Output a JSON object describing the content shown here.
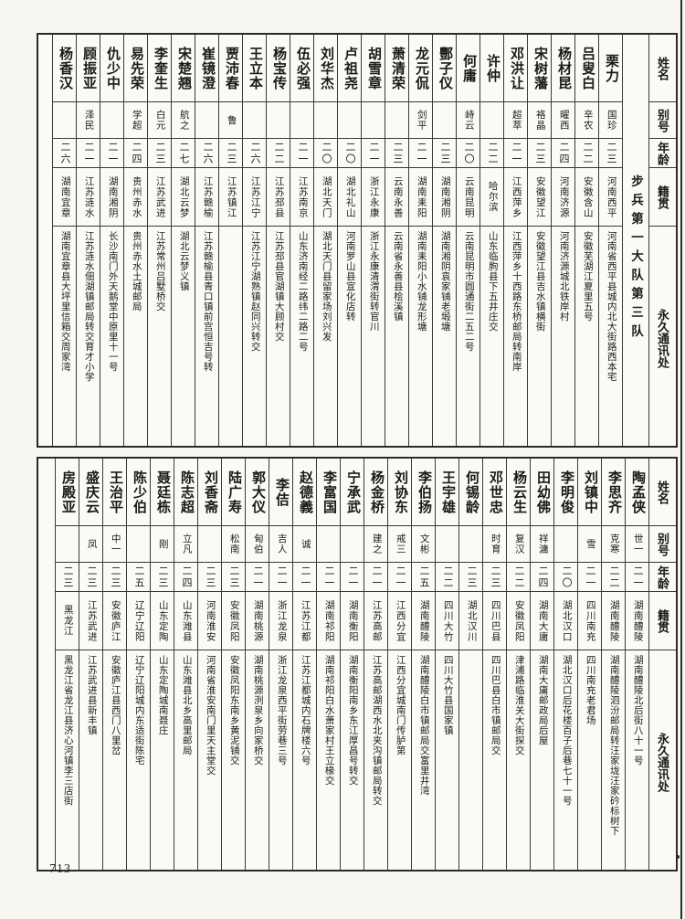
{
  "page": {
    "number": "713"
  },
  "headers": {
    "name": "姓名",
    "alias": "别号",
    "age": "年龄",
    "native": "籍贯",
    "address": "永久通讯处"
  },
  "tables": [
    {
      "unit": "步兵第一大队第三队",
      "people": [
        {
          "name": "栗力",
          "alias": "国珍",
          "age": "二三",
          "native": "河南西平",
          "address": "河南省西平县城内北大街路西本宅"
        },
        {
          "name": "吕叟白",
          "alias": "辛农",
          "age": "二二",
          "native": "安徽含山",
          "address": "安徽芜湖江夏里五号"
        },
        {
          "name": "杨材昆",
          "alias": "曜西",
          "age": "二四",
          "native": "河南济源",
          "address": "河南济源城北铁岸村"
        },
        {
          "name": "宋树藩",
          "alias": "袼晶",
          "age": "二三",
          "native": "安徽望江",
          "address": "安徽望江县吉水镇横街"
        },
        {
          "name": "邓洪让",
          "alias": "超萃",
          "age": "二一",
          "native": "江西萍乡",
          "address": "江西萍乡十西路东桥邮局转南岸"
        },
        {
          "name": "许仲",
          "alias": "",
          "age": "二二",
          "native": "哈尔滨",
          "address": "山东临朐县下五井庄交"
        },
        {
          "name": "何庸",
          "alias": "峙云",
          "age": "二〇",
          "native": "云南昆明",
          "address": "云南昆明市圆通街二五二号"
        },
        {
          "name": "酆子仪",
          "alias": "",
          "age": "二三",
          "native": "湖南湘阴",
          "address": "湖南湘阴袁家铺老塅塘"
        },
        {
          "name": "龙元侃",
          "alias": "剑平",
          "age": "二一",
          "native": "湖南耒阳",
          "address": "湖南耒阳小水铺龙形塘"
        },
        {
          "name": "萧清荣",
          "alias": "",
          "age": "二三",
          "native": "云南永善",
          "address": "云南省永善县桧溪镇"
        },
        {
          "name": "胡雪章",
          "alias": "",
          "age": "二一",
          "native": "浙江永康",
          "address": "浙江永康清渭街转官川"
        },
        {
          "name": "卢祖尧",
          "alias": "",
          "age": "二〇",
          "native": "湖北礼山",
          "address": "河南罗山县宣化店转"
        },
        {
          "name": "刘华杰",
          "alias": "",
          "age": "二〇",
          "native": "湖北天门",
          "address": "湖北天门县留家场刘兴发"
        },
        {
          "name": "伍必强",
          "alias": "",
          "age": "二一",
          "native": "江苏南京",
          "address": "山东济南经二路纬二路二号"
        },
        {
          "name": "杨宝传",
          "alias": "",
          "age": "二二",
          "native": "江苏邳县",
          "address": "江苏邳县官湖镇大顾村交"
        },
        {
          "name": "王立本",
          "alias": "",
          "age": "二六",
          "native": "江苏江宁",
          "address": "江苏江宁湖熟镇赵同兴转交"
        },
        {
          "name": "贾沛春",
          "alias": "鲁",
          "age": "二三",
          "native": "江苏镇江",
          "address": ""
        },
        {
          "name": "崔镜澄",
          "alias": "",
          "age": "二六",
          "native": "江苏赣榆",
          "address": "江苏赣榆县青口镇前宫恒吉号转"
        },
        {
          "name": "宋楚翘",
          "alias": "航之",
          "age": "二七",
          "native": "湖北云梦",
          "address": "湖北云梦义镇"
        },
        {
          "name": "李奎生",
          "alias": "白元",
          "age": "二三",
          "native": "江苏武进",
          "address": "江苏常州吕墅桥交"
        },
        {
          "name": "易先荣",
          "alias": "学超",
          "age": "二四",
          "native": "贵州赤水",
          "address": "贵州赤水土城邮局"
        },
        {
          "name": "仇少中",
          "alias": "",
          "age": "二一",
          "native": "湖南湘阴",
          "address": "长沙南门外天鹅堂中原里十一号"
        },
        {
          "name": "顾振亚",
          "alias": "泽民",
          "age": "二一",
          "native": "江苏涟水",
          "address": "江苏涟水佃湖镇邮局转交育才小学"
        },
        {
          "name": "杨香汉",
          "alias": "",
          "age": "二六",
          "native": "湖南宜章",
          "address": "湖南宜章县大坪里信箱交周家湾"
        }
      ]
    },
    {
      "unit": "",
      "people": [
        {
          "name": "陶孟侠",
          "alias": "世一",
          "age": "二一",
          "native": "湖南醴陵",
          "address": "湖南醴陵北后街八十一号"
        },
        {
          "name": "李思齐",
          "alias": "克寒",
          "age": "二二",
          "native": "湖南醴陵",
          "address": "湖南醴陵泗汾邮局转汪家垅汪家砛标树下"
        },
        {
          "name": "刘镇中",
          "alias": "雪",
          "age": "二一",
          "native": "四川南充",
          "address": "四川南充老君场"
        },
        {
          "name": "李明俊",
          "alias": "",
          "age": "二〇",
          "native": "湖北汉口",
          "address": "湖北汉口后花楼百子后巷七十一号"
        },
        {
          "name": "田幼佛",
          "alias": "祥滽",
          "age": "二四",
          "native": "湖南大庸",
          "address": "湖南大庸邮政局后屋"
        },
        {
          "name": "杨云生",
          "alias": "复汉",
          "age": "二二",
          "native": "安徽凤阳",
          "address": "津浦路临淮关大街探交"
        },
        {
          "name": "邓世忠",
          "alias": "时育",
          "age": "二三",
          "native": "四川巴县",
          "address": "四川巴县白市镇邮局交"
        },
        {
          "name": "何锡龄",
          "alias": "",
          "age": "二三",
          "native": "湖北汉川",
          "address": ""
        },
        {
          "name": "王宇雄",
          "alias": "",
          "age": "二二",
          "native": "四川大竹",
          "address": "四川大竹县国家镇"
        },
        {
          "name": "李伯扬",
          "alias": "文彬",
          "age": "二五",
          "native": "湖南醴陵",
          "address": "湖南醴陵白市镇邮局交富里井湾"
        },
        {
          "name": "刘协东",
          "alias": "戒三",
          "age": "二一",
          "native": "江西分宜",
          "address": "江西分宜城南门传胪第"
        },
        {
          "name": "杨金桥",
          "alias": "建之",
          "age": "二一",
          "native": "江苏高邮",
          "address": "江苏高邮湖西水北夹沟镇邮局转交"
        },
        {
          "name": "宁承武",
          "alias": "",
          "age": "二一",
          "native": "湖南衡阳",
          "address": "湖南衡阳南乡东江厚昌号转交"
        },
        {
          "name": "李富国",
          "alias": "",
          "age": "二一",
          "native": "湖南祁阳",
          "address": "湖南祁阳白水萧家村王立椽交"
        },
        {
          "name": "赵德義",
          "alias": "诚",
          "age": "二一",
          "native": "江苏江都",
          "address": "江苏江都城内石牌楼六号"
        },
        {
          "name": "李佶",
          "alias": "吉人",
          "age": "二一",
          "native": "浙江龙泉",
          "address": "浙江龙泉西平街劳巷三号"
        },
        {
          "name": "郭大仪",
          "alias": "甸伯",
          "age": "二一",
          "native": "湖南桃源",
          "address": "湖南桃源洌泉乡向家桥交"
        },
        {
          "name": "陆广寿",
          "alias": "松南",
          "age": "二三",
          "native": "安徽凤阳",
          "address": "安徽凤阳东南乡黄泥铺交"
        },
        {
          "name": "刘香斋",
          "alias": "",
          "age": "二三",
          "native": "河南淮安",
          "address": "河南省淮安南门里天主堂交"
        },
        {
          "name": "陈志超",
          "alias": "立凡",
          "age": "二四",
          "native": "山东潍县",
          "address": "山东潍县北乡高里邮局"
        },
        {
          "name": "聂廷栋",
          "alias": "刚",
          "age": "二三",
          "native": "山东定陶",
          "address": "山东定陶城南聂庄"
        },
        {
          "name": "陈少伯",
          "alias": "",
          "age": "二五",
          "native": "辽宁辽阳",
          "address": "辽宁辽阳城内东适街陈宅"
        },
        {
          "name": "王治平",
          "alias": "中一",
          "age": "二三",
          "native": "安徽庐江",
          "address": "安徽庐江县西门八里岔"
        },
        {
          "name": "盛庆云",
          "alias": "凤",
          "age": "二三",
          "native": "江苏武进",
          "address": "江苏武进县新丰镇"
        },
        {
          "name": "房殿亚",
          "alias": "",
          "age": "二三",
          "native": "黑龙江",
          "address": "黑龙江省龙江县济心河镇李三店街"
        }
      ]
    }
  ]
}
